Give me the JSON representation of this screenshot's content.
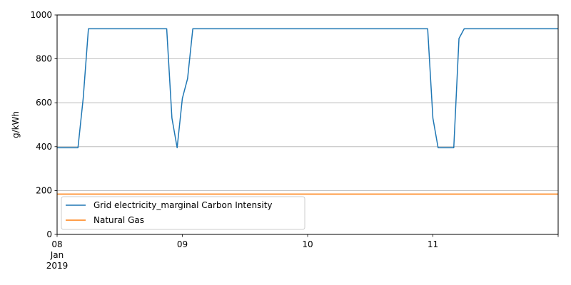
{
  "chart_data": {
    "type": "line",
    "ylabel": "g/kWh",
    "ylim": [
      0,
      1000
    ],
    "xlim": [
      "2019-01-08T00:00",
      "2019-01-12T00:00"
    ],
    "grid": "y-major",
    "legend_placement": "lower-left",
    "y_ticks": [
      {
        "value": 0,
        "label": "0"
      },
      {
        "value": 200,
        "label": "200"
      },
      {
        "value": 400,
        "label": "400"
      },
      {
        "value": 600,
        "label": "600"
      },
      {
        "value": 800,
        "label": "800"
      },
      {
        "value": 1000,
        "label": "1000"
      }
    ],
    "x_ticks": [
      {
        "value": "2019-01-08T00:00",
        "lines": [
          "08",
          "Jan",
          "2019"
        ]
      },
      {
        "value": "2019-01-09T00:00",
        "lines": [
          "09"
        ]
      },
      {
        "value": "2019-01-10T00:00",
        "lines": [
          "10"
        ]
      },
      {
        "value": "2019-01-11T00:00",
        "lines": [
          "11"
        ]
      }
    ],
    "series": [
      {
        "name": "Grid electricity_marginal Carbon Intensity",
        "color": "#1f77b4",
        "points": [
          [
            "2019-01-08T00:00",
            395
          ],
          [
            "2019-01-08T04:00",
            395
          ],
          [
            "2019-01-08T05:00",
            620
          ],
          [
            "2019-01-08T06:00",
            937
          ],
          [
            "2019-01-08T21:00",
            937
          ],
          [
            "2019-01-08T22:00",
            530
          ],
          [
            "2019-01-08T23:00",
            395
          ],
          [
            "2019-01-09T00:00",
            620
          ],
          [
            "2019-01-09T01:00",
            710
          ],
          [
            "2019-01-09T02:00",
            937
          ],
          [
            "2019-01-10T23:00",
            937
          ],
          [
            "2019-01-11T00:00",
            530
          ],
          [
            "2019-01-11T01:00",
            395
          ],
          [
            "2019-01-11T04:00",
            395
          ],
          [
            "2019-01-11T05:00",
            893
          ],
          [
            "2019-01-11T06:00",
            937
          ],
          [
            "2019-01-12T00:00",
            937
          ]
        ]
      },
      {
        "name": "Natural Gas",
        "color": "#ff7f0e",
        "points": [
          [
            "2019-01-08T00:00",
            184
          ],
          [
            "2019-01-12T00:00",
            184
          ]
        ]
      }
    ]
  }
}
